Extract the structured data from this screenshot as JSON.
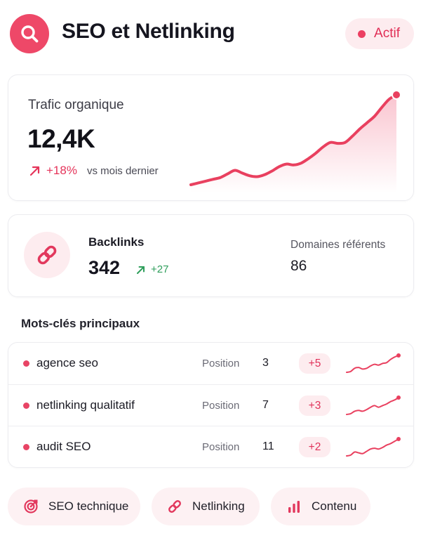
{
  "header": {
    "title": "SEO et Netlinking",
    "status": "Actif",
    "logo_icon": "search-icon"
  },
  "traffic": {
    "label": "Trafic organique",
    "value": "12,4K",
    "change": "+18%",
    "change_caption": "vs mois dernier",
    "trend": [
      2,
      4,
      6,
      8,
      10,
      14,
      18,
      15,
      12,
      11,
      13,
      17,
      22,
      25,
      24,
      26,
      31,
      37,
      44,
      49,
      48,
      49,
      56,
      64,
      71,
      78,
      88,
      97,
      102
    ]
  },
  "backlinks": {
    "label": "Backlinks",
    "value": "342",
    "change": "+27",
    "domains_label": "Domaines référents",
    "domains_value": "86"
  },
  "keywords": {
    "title": "Mots-clés principaux",
    "position_label": "Position",
    "rows": [
      {
        "keyword": "agence seo",
        "position": "3",
        "change": "+5",
        "trend": [
          3,
          4,
          8,
          9,
          7,
          8,
          11,
          13,
          12,
          14,
          15,
          19,
          22,
          24
        ]
      },
      {
        "keyword": "netlinking qualitatif",
        "position": "7",
        "change": "+3",
        "trend": [
          3,
          4,
          7,
          8,
          7,
          9,
          12,
          14,
          12,
          14,
          16,
          19,
          21,
          24
        ]
      },
      {
        "keyword": "audit SEO",
        "position": "11",
        "change": "+2",
        "trend": [
          2,
          3,
          7,
          6,
          5,
          8,
          11,
          12,
          11,
          13,
          16,
          18,
          21,
          24
        ]
      }
    ]
  },
  "quick_actions": [
    {
      "label": "SEO technique",
      "icon": "target-icon"
    },
    {
      "label": "Netlinking",
      "icon": "link-icon"
    },
    {
      "label": "Contenu",
      "icon": "bar-chart-icon"
    }
  ],
  "colors": {
    "accent": "#ec3f62",
    "accent_light": "#fdecef",
    "positive_green": "#2e9e5b"
  }
}
